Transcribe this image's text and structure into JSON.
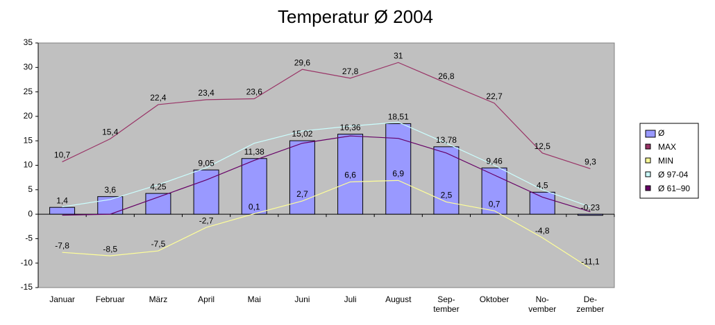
{
  "chart_data": {
    "type": "bar",
    "title": "Temperatur Ø 2004",
    "categories": [
      "Januar",
      "Februar",
      "März",
      "April",
      "Mai",
      "Juni",
      "Juli",
      "August",
      "Sep-\ntember",
      "Oktober",
      "No-\nvember",
      "De-\nzember"
    ],
    "series": [
      {
        "name": "Ø",
        "type": "bar",
        "color": "#9999ff",
        "values": [
          1.4,
          3.6,
          4.25,
          9.05,
          11.38,
          15.02,
          16.36,
          18.51,
          13.78,
          9.46,
          4.5,
          -0.23
        ],
        "value_labels": [
          "1,4",
          "3,6",
          "4,25",
          "9,05",
          "11,38",
          "15,02",
          "16,36",
          "18,51",
          "13,78",
          "9,46",
          "4,5",
          "-0,23"
        ]
      },
      {
        "name": "MAX",
        "type": "line",
        "color": "#993366",
        "values": [
          10.7,
          15.4,
          22.4,
          23.4,
          23.6,
          29.6,
          27.8,
          31,
          26.8,
          22.7,
          12.5,
          9.3
        ],
        "value_labels": [
          "10,7",
          "15,4",
          "22,4",
          "23,4",
          "23,6",
          "29,6",
          "27,8",
          "31",
          "26,8",
          "22,7",
          "12,5",
          "9,3"
        ]
      },
      {
        "name": "MIN",
        "type": "line",
        "color": "#ffff99",
        "values": [
          -7.8,
          -8.5,
          -7.5,
          -2.7,
          0.1,
          2.7,
          6.6,
          6.9,
          2.5,
          0.7,
          -4.8,
          -11.1
        ],
        "value_labels": [
          "-7,8",
          "-8,5",
          "-7,5",
          "-2,7",
          "0,1",
          "2,7",
          "6,6",
          "6,9",
          "2,5",
          "0,7",
          "-4,8",
          "-11,1"
        ]
      },
      {
        "name": "Ø 97-04",
        "type": "line",
        "color": "#ccffff",
        "values": [
          1.5,
          3,
          6,
          9.5,
          14.5,
          17,
          18,
          18.8,
          14.5,
          10,
          5,
          1.5
        ]
      },
      {
        "name": "Ø 61–90",
        "type": "line",
        "color": "#660066",
        "values": [
          -0.2,
          0,
          3.5,
          7,
          11,
          14.5,
          16,
          15.5,
          12.5,
          8,
          3.5,
          0.5
        ]
      }
    ],
    "ylim": [
      -15,
      35
    ],
    "yticks": [
      -15,
      -10,
      -5,
      0,
      5,
      10,
      15,
      20,
      25,
      30,
      35
    ],
    "grid": false,
    "legend": "right"
  }
}
